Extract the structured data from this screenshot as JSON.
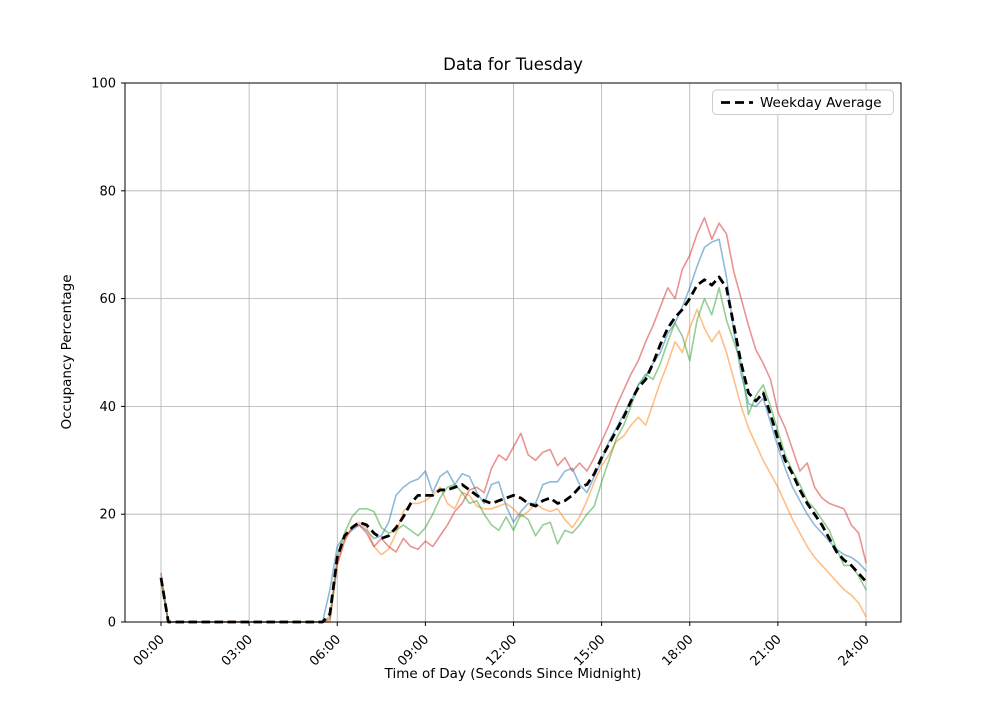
{
  "figure": {
    "background": "#ffffff"
  },
  "chart_data": {
    "type": "line",
    "title": "Data for Tuesday",
    "xlabel": "Time of Day (Seconds Since Midnight)",
    "ylabel": "Occupancy Percentage",
    "ylim": [
      0,
      100
    ],
    "xlim_hours": [
      -1.2,
      25.2
    ],
    "grid": true,
    "x_start": 0,
    "x_step": 0.25,
    "x_ticks": {
      "hours": [
        0,
        3,
        6,
        9,
        12,
        15,
        18,
        21,
        24
      ],
      "labels": [
        "00:00",
        "03:00",
        "06:00",
        "09:00",
        "12:00",
        "15:00",
        "18:00",
        "21:00",
        "24:00"
      ]
    },
    "y_ticks": [
      0,
      20,
      40,
      60,
      80,
      100
    ],
    "legend": {
      "position": "upper right",
      "entries": [
        {
          "label": "Weekday Average",
          "style": "dashed",
          "color": "#000000"
        }
      ]
    },
    "series": [
      {
        "name": "line-blue",
        "color": "#1f77b4",
        "opacity": 0.5,
        "values": [
          8,
          0,
          0,
          0,
          0,
          0,
          0,
          0,
          0,
          0,
          0,
          0,
          0,
          0,
          0,
          0,
          0,
          0,
          0,
          0,
          0,
          0,
          0,
          6,
          14,
          16,
          17,
          18,
          17,
          15.5,
          16,
          18.5,
          23.5,
          25,
          26,
          26.5,
          28,
          24,
          27,
          28,
          25.5,
          27.5,
          27,
          24,
          22,
          25.5,
          26,
          21.5,
          18.5,
          20.5,
          22,
          22,
          25.5,
          26,
          26,
          28,
          28.5,
          25.5,
          24,
          27,
          30,
          33.5,
          36,
          38.5,
          41,
          44,
          45.5,
          48,
          50,
          53.5,
          55.5,
          58.5,
          62,
          66,
          69.5,
          70.5,
          71,
          64,
          54,
          46,
          40.5,
          40,
          41.5,
          37,
          32.5,
          28.5,
          25,
          22.5,
          20,
          18,
          16.5,
          15,
          13.5,
          12.5,
          12,
          11,
          9.5
        ]
      },
      {
        "name": "line-orange",
        "color": "#ff7f0e",
        "opacity": 0.5,
        "values": [
          8,
          0,
          0,
          0,
          0,
          0,
          0,
          0,
          0,
          0,
          0,
          0,
          0,
          0,
          0,
          0,
          0,
          0,
          0,
          0,
          0,
          0,
          0,
          0,
          11,
          15.5,
          17.5,
          18.5,
          17.5,
          14,
          12.5,
          13.5,
          16.5,
          20.5,
          22,
          22,
          22.5,
          23.5,
          25,
          22,
          21,
          24,
          23.5,
          21.5,
          21,
          21,
          21.5,
          22,
          21,
          19.5,
          20.5,
          22,
          21,
          20.5,
          21,
          19,
          17.5,
          19.5,
          22.5,
          26,
          29,
          31,
          33.5,
          34.5,
          36.5,
          38,
          36.5,
          40.5,
          44.5,
          48,
          52,
          50,
          54.5,
          58,
          54.5,
          52,
          54,
          50,
          45,
          40,
          36,
          33,
          30,
          27.5,
          25,
          22,
          19,
          16.5,
          14,
          12,
          10.5,
          9,
          7.5,
          6,
          5,
          3.5,
          1
        ]
      },
      {
        "name": "line-green",
        "color": "#2ca02c",
        "opacity": 0.5,
        "values": [
          7.5,
          0,
          0,
          0,
          0,
          0,
          0,
          0,
          0,
          0,
          0,
          0,
          0,
          0,
          0,
          0,
          0,
          0,
          0,
          0,
          0,
          0,
          0,
          1,
          12,
          16.5,
          19.5,
          21,
          21,
          20.5,
          17.5,
          16.5,
          17,
          18,
          17,
          16,
          17.5,
          20,
          23,
          25,
          25.5,
          24,
          22,
          22.5,
          20,
          18,
          17,
          19.5,
          17,
          20,
          19,
          16,
          18,
          18.5,
          14.5,
          17,
          16.5,
          18,
          20,
          21.5,
          26,
          30,
          34,
          36.5,
          40,
          44,
          46,
          45,
          48,
          52,
          55.5,
          53,
          48.5,
          56,
          60,
          57,
          62,
          56,
          52,
          48,
          38.5,
          42,
          44,
          40,
          35.5,
          31,
          28,
          25.5,
          22.5,
          21,
          19,
          17,
          13.5,
          10.5,
          10.5,
          8.5,
          6
        ]
      },
      {
        "name": "line-red",
        "color": "#d62728",
        "opacity": 0.5,
        "values": [
          9,
          0,
          0,
          0,
          0,
          0,
          0,
          0,
          0,
          0,
          0,
          0,
          0,
          0,
          0,
          0,
          0,
          0,
          0,
          0,
          0,
          0,
          0,
          0.5,
          10.5,
          15,
          17.5,
          18,
          16.5,
          14,
          15.5,
          14,
          13,
          15.5,
          14,
          13.5,
          15,
          14,
          16,
          18,
          20.5,
          22,
          24.5,
          25,
          24,
          28.5,
          31,
          30,
          32.5,
          35,
          31,
          30,
          31.5,
          32,
          29,
          30.5,
          28,
          29.5,
          28,
          30.5,
          33.5,
          36.5,
          40,
          43,
          46,
          48.5,
          52,
          55,
          58.5,
          62,
          60,
          65.5,
          68,
          72,
          75,
          71,
          74,
          72,
          65,
          60,
          55,
          50.5,
          48,
          45,
          39,
          36,
          32,
          28,
          29.5,
          25,
          23,
          22,
          21.5,
          21,
          18,
          16.5,
          11
        ]
      }
    ],
    "average": {
      "name": "Weekday Average",
      "color": "#000000",
      "dash": [
        8.5,
        4.5
      ],
      "values": [
        8.2,
        0,
        0,
        0,
        0,
        0,
        0,
        0,
        0,
        0,
        0,
        0,
        0,
        0,
        0,
        0,
        0,
        0,
        0,
        0,
        0,
        0,
        0,
        1.5,
        12,
        16,
        17.5,
        18.5,
        18,
        16.5,
        15.5,
        16,
        17.5,
        19.5,
        22,
        23.5,
        23.5,
        23.5,
        24.5,
        24.5,
        25,
        25.5,
        24.5,
        23.5,
        22.5,
        22,
        22.5,
        23,
        23.5,
        23,
        22,
        21.5,
        22.5,
        23,
        22,
        22.5,
        23.5,
        25,
        25.5,
        27.5,
        30.5,
        33,
        35.5,
        38,
        41,
        43.5,
        45,
        48,
        51.5,
        54.5,
        56.5,
        58,
        60,
        62.5,
        63.5,
        62.5,
        64,
        62,
        55,
        48,
        42.5,
        41,
        42.5,
        38.5,
        34,
        30,
        27.5,
        24.5,
        22,
        20,
        18,
        15.5,
        13,
        11.5,
        10.5,
        9,
        7.5
      ]
    },
    "grid_color": "#b0b0b0",
    "spine_color": "#000000"
  }
}
